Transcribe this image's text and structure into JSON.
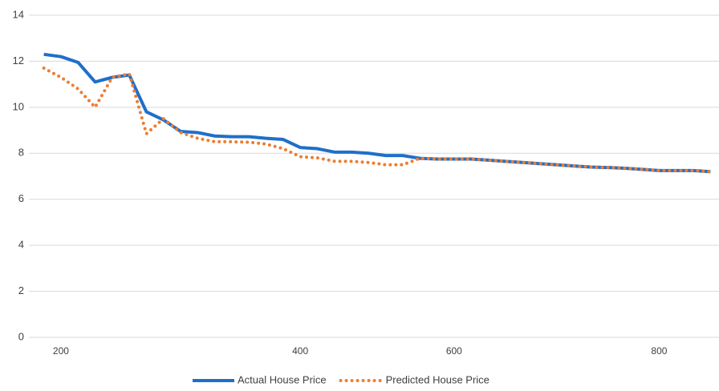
{
  "chart_data": {
    "type": "line",
    "categories": [
      null,
      "200",
      null,
      null,
      null,
      null,
      null,
      null,
      null,
      null,
      null,
      null,
      null,
      null,
      null,
      "400",
      null,
      null,
      null,
      null,
      null,
      null,
      null,
      null,
      "600",
      null,
      null,
      null,
      null,
      null,
      null,
      null,
      null,
      null,
      null,
      null,
      "800",
      null,
      null,
      null
    ],
    "series": [
      {
        "name": "Actual House Price",
        "color": "#1F6FC9",
        "style": "solid",
        "values": [
          12.3,
          12.2,
          11.95,
          11.1,
          11.3,
          11.4,
          9.8,
          9.45,
          8.95,
          8.9,
          8.75,
          8.72,
          8.72,
          8.65,
          8.6,
          8.25,
          8.2,
          8.05,
          8.05,
          8.0,
          7.9,
          7.9,
          7.78,
          7.75,
          7.75,
          7.75,
          7.7,
          7.65,
          7.6,
          7.55,
          7.5,
          7.45,
          7.4,
          7.38,
          7.35,
          7.3,
          7.25,
          7.25,
          7.25,
          7.2
        ]
      },
      {
        "name": "Predicted House Price",
        "color": "#ED7D31",
        "style": "dotted",
        "values": [
          11.7,
          11.3,
          10.8,
          10.0,
          11.3,
          11.45,
          8.85,
          9.5,
          8.9,
          8.65,
          8.5,
          8.5,
          8.48,
          8.4,
          8.2,
          7.85,
          7.8,
          7.65,
          7.65,
          7.6,
          7.5,
          7.5,
          7.78,
          7.75,
          7.75,
          7.75,
          7.7,
          7.65,
          7.6,
          7.55,
          7.5,
          7.45,
          7.4,
          7.38,
          7.35,
          7.3,
          7.25,
          7.25,
          7.25,
          7.2
        ]
      }
    ],
    "ylim": [
      0,
      14
    ],
    "yticks": [
      0,
      2,
      4,
      6,
      8,
      10,
      12,
      14
    ],
    "grid": true,
    "legend": "bottom"
  }
}
